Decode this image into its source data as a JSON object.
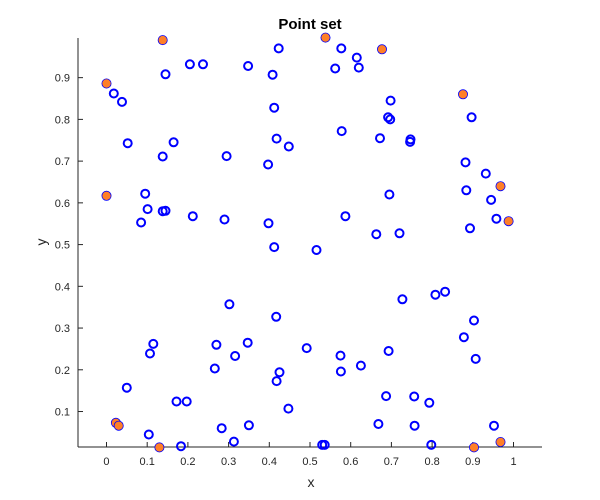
{
  "chart_data": {
    "type": "scatter",
    "title": "Point set",
    "xlabel": "x",
    "ylabel": "y",
    "xlim": [
      -0.07,
      1.07
    ],
    "ylim": [
      0.015,
      0.995
    ],
    "xticks": [
      "0",
      "0.1",
      "0.2",
      "0.3",
      "0.4",
      "0.5",
      "0.6",
      "0.7",
      "0.8",
      "0.9",
      "1"
    ],
    "yticks": [
      "0.1",
      "0.2",
      "0.3",
      "0.4",
      "0.5",
      "0.6",
      "0.7",
      "0.8",
      "0.9"
    ],
    "grid": false,
    "colors": {
      "open_marker": "#0000ff",
      "filled_marker": "#ff7f27",
      "filled_edge": "#0000ff",
      "axis": "#262626"
    },
    "series": [
      {
        "marker": "open-circle",
        "points": [
          [
            0.018,
            0.862
          ],
          [
            0.038,
            0.842
          ],
          [
            0.145,
            0.908
          ],
          [
            0.205,
            0.932
          ],
          [
            0.237,
            0.932
          ],
          [
            0.348,
            0.928
          ],
          [
            0.408,
            0.907
          ],
          [
            0.423,
            0.97
          ],
          [
            0.412,
            0.828
          ],
          [
            0.577,
            0.97
          ],
          [
            0.615,
            0.948
          ],
          [
            0.62,
            0.924
          ],
          [
            0.562,
            0.922
          ],
          [
            0.698,
            0.845
          ],
          [
            0.692,
            0.805
          ],
          [
            0.697,
            0.8
          ],
          [
            0.897,
            0.805
          ],
          [
            0.052,
            0.743
          ],
          [
            0.138,
            0.711
          ],
          [
            0.165,
            0.745
          ],
          [
            0.295,
            0.712
          ],
          [
            0.397,
            0.692
          ],
          [
            0.418,
            0.754
          ],
          [
            0.448,
            0.735
          ],
          [
            0.578,
            0.772
          ],
          [
            0.672,
            0.755
          ],
          [
            0.747,
            0.752
          ],
          [
            0.746,
            0.746
          ],
          [
            0.882,
            0.697
          ],
          [
            0.932,
            0.67
          ],
          [
            0.884,
            0.63
          ],
          [
            0.945,
            0.607
          ],
          [
            0.095,
            0.622
          ],
          [
            0.101,
            0.585
          ],
          [
            0.085,
            0.553
          ],
          [
            0.138,
            0.58
          ],
          [
            0.145,
            0.581
          ],
          [
            0.212,
            0.568
          ],
          [
            0.29,
            0.56
          ],
          [
            0.398,
            0.551
          ],
          [
            0.412,
            0.494
          ],
          [
            0.516,
            0.487
          ],
          [
            0.587,
            0.568
          ],
          [
            0.695,
            0.62
          ],
          [
            0.663,
            0.525
          ],
          [
            0.72,
            0.527
          ],
          [
            0.893,
            0.539
          ],
          [
            0.958,
            0.562
          ],
          [
            0.727,
            0.369
          ],
          [
            0.808,
            0.38
          ],
          [
            0.832,
            0.387
          ],
          [
            0.302,
            0.357
          ],
          [
            0.417,
            0.327
          ],
          [
            0.903,
            0.318
          ],
          [
            0.878,
            0.278
          ],
          [
            0.115,
            0.262
          ],
          [
            0.107,
            0.239
          ],
          [
            0.27,
            0.26
          ],
          [
            0.347,
            0.265
          ],
          [
            0.316,
            0.233
          ],
          [
            0.492,
            0.252
          ],
          [
            0.575,
            0.234
          ],
          [
            0.625,
            0.21
          ],
          [
            0.576,
            0.196
          ],
          [
            0.693,
            0.245
          ],
          [
            0.907,
            0.226
          ],
          [
            0.266,
            0.203
          ],
          [
            0.425,
            0.194
          ],
          [
            0.418,
            0.173
          ],
          [
            0.05,
            0.157
          ],
          [
            0.172,
            0.124
          ],
          [
            0.197,
            0.124
          ],
          [
            0.447,
            0.107
          ],
          [
            0.687,
            0.137
          ],
          [
            0.756,
            0.136
          ],
          [
            0.793,
            0.121
          ],
          [
            0.104,
            0.045
          ],
          [
            0.183,
            0.017
          ],
          [
            0.283,
            0.06
          ],
          [
            0.35,
            0.067
          ],
          [
            0.313,
            0.028
          ],
          [
            0.53,
            0.02
          ],
          [
            0.536,
            0.02
          ],
          [
            0.668,
            0.07
          ],
          [
            0.757,
            0.066
          ],
          [
            0.798,
            0.02
          ],
          [
            0.952,
            0.066
          ]
        ]
      },
      {
        "marker": "filled-circle",
        "points": [
          [
            0.0,
            0.886
          ],
          [
            0.138,
            0.99
          ],
          [
            0.538,
            0.996
          ],
          [
            0.677,
            0.968
          ],
          [
            0.876,
            0.86
          ],
          [
            0.0,
            0.617
          ],
          [
            0.968,
            0.64
          ],
          [
            0.988,
            0.556
          ],
          [
            0.023,
            0.073
          ],
          [
            0.03,
            0.066
          ],
          [
            0.13,
            0.014
          ],
          [
            0.903,
            0.014
          ],
          [
            0.968,
            0.027
          ]
        ]
      }
    ]
  }
}
